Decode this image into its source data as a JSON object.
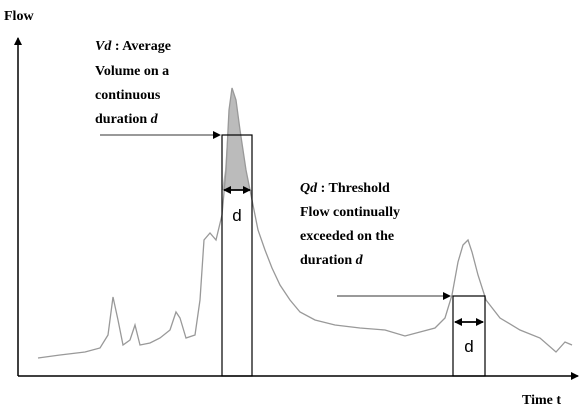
{
  "axes": {
    "y_label": "Flow",
    "x_label": "Time t"
  },
  "vd": {
    "symbol": "Vd",
    "sep": ":",
    "lines": [
      "Average",
      "Volume on a",
      "continuous",
      "duration"
    ],
    "var": "d",
    "width_label": "d"
  },
  "qd": {
    "symbol": "Qd",
    "sep": ":",
    "lines": [
      "Threshold",
      "Flow continually",
      "exceeded on the",
      "duration"
    ],
    "var": "d",
    "width_label": "d"
  }
}
